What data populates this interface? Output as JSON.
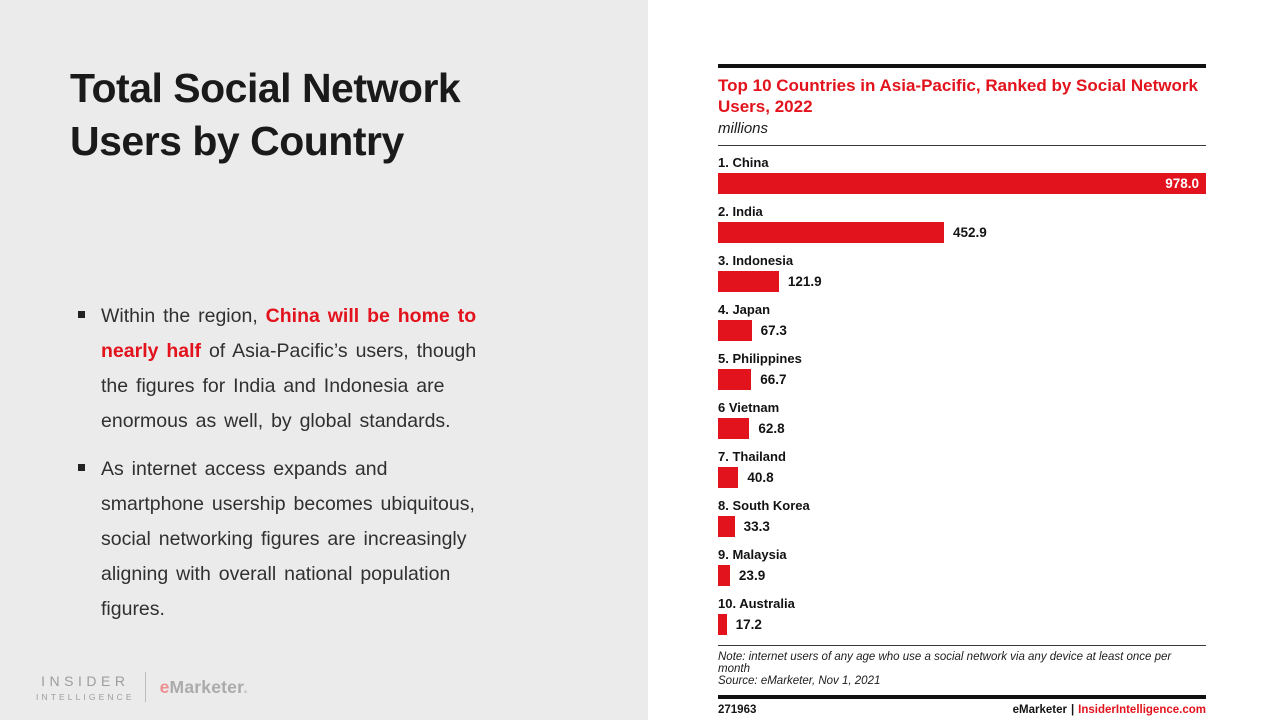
{
  "slide": {
    "title": "Total Social Network Users by Country",
    "bullets": [
      {
        "lines": [
          [
            {
              "text": "Within the region, ",
              "red": false
            },
            {
              "text": "China will be home to",
              "red": true
            }
          ],
          [
            {
              "text": "nearly half",
              "red": true
            },
            {
              "text": " of Asia-Pacific’s users, though",
              "red": false
            }
          ],
          [
            {
              "text": "the figures for India and Indonesia are",
              "red": false
            }
          ],
          [
            {
              "text": "enormous as well, by global standards.",
              "red": false
            }
          ]
        ]
      },
      {
        "lines": [
          [
            {
              "text": "As internet access expands and",
              "red": false
            }
          ],
          [
            {
              "text": "smartphone usership becomes ubiquitous,",
              "red": false
            }
          ],
          [
            {
              "text": "social networking figures are increasingly",
              "red": false
            }
          ],
          [
            {
              "text": "aligning with overall national population",
              "red": false
            }
          ],
          [
            {
              "text": "figures.",
              "red": false
            }
          ]
        ]
      }
    ],
    "logo": {
      "line1": "INSIDER",
      "line2": "INTELLIGENCE",
      "brand_e": "e",
      "brand_rest": "Marketer",
      "brand_dot": "."
    }
  },
  "chart": {
    "title": "Top 10 Countries in Asia-Pacific, Ranked by Social Network Users, 2022",
    "subtitle": "millions",
    "note": "Note: internet users of any age who use a social network via any device at least once per month",
    "source": "Source: eMarketer, Nov 1, 2021",
    "footer_id": "271963",
    "footer_brand": "eMarketer",
    "footer_sep": "|",
    "footer_site": "InsiderIntelligence.com"
  },
  "chart_data": {
    "type": "bar",
    "orientation": "horizontal",
    "title": "Top 10 Countries in Asia-Pacific, Ranked by Social Network Users, 2022",
    "unit_label": "millions",
    "categories": [
      "1. China",
      "2. India",
      "3. Indonesia",
      "4. Japan",
      "5. Philippines",
      "6 Vietnam",
      "7. Thailand",
      "8. South Korea",
      "9. Malaysia",
      "10. Australia"
    ],
    "values": [
      978.0,
      452.9,
      121.9,
      67.3,
      66.7,
      62.8,
      40.8,
      33.3,
      23.9,
      17.2
    ],
    "value_labels": [
      "978.0",
      "452.9",
      "121.9",
      "67.3",
      "66.7",
      "62.8",
      "40.8",
      "33.3",
      "23.9",
      "17.2"
    ],
    "xlim": [
      0,
      978
    ],
    "bar_color": "#e2131d",
    "grid": false,
    "legend": false
  },
  "colors": {
    "accent_red": "#e2131d",
    "panel_gray": "#ebebeb",
    "rule_black": "#111111",
    "text_dark": "#1a1a1a",
    "logo_gray": "#9d9d9d",
    "logo_pink_e": "#ec9090"
  }
}
